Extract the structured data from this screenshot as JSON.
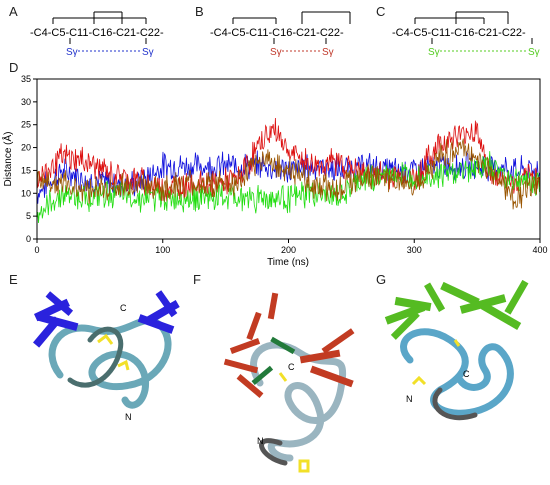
{
  "panels": {
    "a": {
      "letter": "A",
      "chain": "-C4-C5-C11-C16-C21-C22-",
      "residues": [
        "C4",
        "C5",
        "C11",
        "C16",
        "C21",
        "C22"
      ],
      "sg_left": "Sγ",
      "sg_right": "Sγ",
      "link_color": "#2233cc"
    },
    "b": {
      "letter": "B",
      "chain": "-C4-C5-C11-C16-C21-C22-",
      "residues": [
        "C4",
        "C5",
        "C11",
        "C16",
        "C21",
        "C22"
      ],
      "sg_left": "Sγ",
      "sg_right": "Sγ",
      "link_color": "#c0392b"
    },
    "c": {
      "letter": "C",
      "chain": "-C4-C5-C11-C16-C21-C22-",
      "residues": [
        "C4",
        "C5",
        "C11",
        "C16",
        "C21",
        "C22"
      ],
      "sg_left": "Sγ",
      "sg_right": "Sγ",
      "link_color": "#55cc22"
    },
    "d": {
      "letter": "D"
    },
    "e": {
      "letter": "E",
      "label_c": "C",
      "label_n": "N",
      "accent": "#2a22dd"
    },
    "f": {
      "letter": "F",
      "label_c": "C",
      "label_n": "N",
      "accent": "#c23b22"
    },
    "g": {
      "letter": "G",
      "label_c": "C",
      "label_n": "N",
      "accent": "#55bb22"
    }
  },
  "chart_data": {
    "type": "line",
    "title": "",
    "xlabel": "Time (ns)",
    "ylabel": "Distance (Å)",
    "xlim": [
      0,
      400
    ],
    "ylim": [
      0,
      35
    ],
    "xticks": [
      0,
      100,
      200,
      300,
      400
    ],
    "yticks": [
      0,
      5,
      10,
      15,
      20,
      25,
      30,
      35
    ],
    "grid": false,
    "series": [
      {
        "color": "#1111dd",
        "x": [
          0,
          20,
          40,
          60,
          80,
          100,
          120,
          140,
          160,
          180,
          200,
          220,
          240,
          260,
          280,
          300,
          320,
          340,
          360,
          380,
          400
        ],
        "y": [
          10,
          15,
          13,
          12,
          12,
          16,
          16,
          16,
          16,
          16,
          15,
          16,
          15,
          16,
          15,
          15,
          16,
          16,
          16,
          15,
          15
        ]
      },
      {
        "color": "#dd1111",
        "x": [
          0,
          20,
          40,
          60,
          80,
          100,
          120,
          140,
          160,
          180,
          190,
          200,
          220,
          240,
          260,
          280,
          300,
          320,
          340,
          350,
          360,
          380,
          400
        ],
        "y": [
          13,
          18,
          17,
          14,
          13,
          11,
          12,
          12,
          13,
          22,
          24,
          19,
          16,
          17,
          14,
          14,
          13,
          21,
          23,
          24,
          14,
          12,
          14
        ]
      },
      {
        "color": "#22dd11",
        "x": [
          0,
          20,
          40,
          60,
          80,
          100,
          120,
          140,
          160,
          180,
          200,
          220,
          240,
          260,
          280,
          300,
          320,
          340,
          360,
          380,
          400
        ],
        "y": [
          5,
          10,
          9,
          10,
          9,
          9,
          9,
          9,
          9,
          9,
          9,
          10,
          9,
          13,
          14,
          14,
          14,
          15,
          16,
          13,
          12
        ]
      },
      {
        "color": "#995500",
        "x": [
          0,
          20,
          40,
          60,
          80,
          100,
          120,
          140,
          160,
          180,
          200,
          220,
          240,
          260,
          280,
          300,
          320,
          340,
          360,
          380,
          400
        ],
        "y": [
          13,
          12,
          11,
          11,
          12,
          11,
          12,
          12,
          12,
          18,
          15,
          12,
          11,
          14,
          13,
          12,
          18,
          20,
          15,
          9,
          12
        ]
      }
    ]
  }
}
